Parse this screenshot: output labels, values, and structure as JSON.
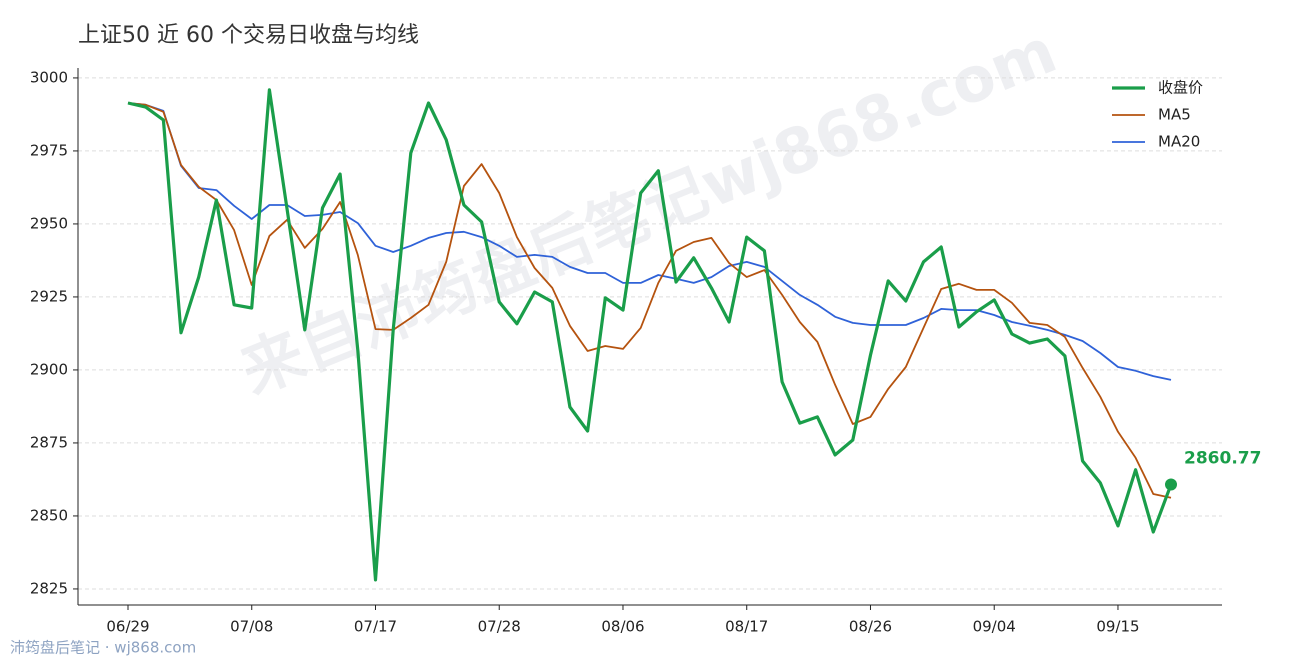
{
  "chart_data": {
    "type": "line",
    "title": "上证50 近 60 个交易日收盘与均线",
    "categories": [
      "06/29",
      null,
      null,
      null,
      null,
      null,
      null,
      "07/08",
      null,
      null,
      null,
      null,
      null,
      null,
      "07/17",
      null,
      null,
      null,
      null,
      null,
      null,
      "07/28",
      null,
      null,
      null,
      null,
      null,
      null,
      "08/06",
      null,
      null,
      null,
      null,
      null,
      null,
      "08/17",
      null,
      null,
      null,
      null,
      null,
      null,
      "08/26",
      null,
      null,
      null,
      null,
      null,
      null,
      "09/04",
      null,
      null,
      null,
      null,
      null,
      null,
      "09/15",
      null,
      null,
      null
    ],
    "series": [
      {
        "name": "收盘价",
        "color": "#1a9e4a",
        "end_label": true,
        "values": [
          2991.4,
          2990.0,
          2985.6,
          2912.7,
          2931.8,
          2958.2,
          2922.3,
          2921.2,
          2995.9,
          2955.0,
          2913.7,
          2955.5,
          2967.1,
          2906.8,
          2828.1,
          2913.7,
          2974.3,
          2991.4,
          2978.8,
          2956.5,
          2950.7,
          2923.3,
          2915.8,
          2926.7,
          2923.3,
          2887.3,
          2879.1,
          2924.7,
          2920.5,
          2960.6,
          2968.2,
          2930.1,
          2938.4,
          2928.1,
          2916.4,
          2945.5,
          2940.8,
          2895.9,
          2881.8,
          2883.9,
          2870.9,
          2876.0,
          2905.1,
          2930.5,
          2923.6,
          2937.0,
          2942.1,
          2914.7,
          2919.9,
          2924.0,
          2912.3,
          2909.2,
          2910.6,
          2904.8,
          2868.8,
          2861.3,
          2846.6,
          2865.8,
          2844.5,
          2860.77
        ]
      },
      {
        "name": "MA5",
        "color": "#b5530f",
        "values": [
          2991.4,
          2990.8,
          2988.4,
          2970.2,
          2962.7,
          2958.2,
          2947.9,
          2929.1,
          2945.9,
          2951.4,
          2941.8,
          2948.3,
          2957.5,
          2939.4,
          2914.0,
          2913.7,
          2917.8,
          2922.3,
          2937.0,
          2963.0,
          2970.5,
          2960.6,
          2945.5,
          2934.9,
          2928.1,
          2915.1,
          2906.5,
          2908.2,
          2907.2,
          2914.4,
          2929.8,
          2940.8,
          2943.8,
          2945.2,
          2936.6,
          2931.8,
          2934.2,
          2925.7,
          2916.4,
          2909.6,
          2894.9,
          2881.5,
          2883.9,
          2893.5,
          2901.0,
          2914.4,
          2927.7,
          2929.5,
          2927.4,
          2927.4,
          2923.0,
          2916.1,
          2915.4,
          2911.3,
          2900.7,
          2890.8,
          2878.8,
          2869.9,
          2857.5,
          2856.2
        ]
      },
      {
        "name": "MA20",
        "color": "#2f62d8",
        "values": [
          2991.4,
          2990.8,
          2988.7,
          2969.9,
          2962.3,
          2961.6,
          2956.2,
          2951.7,
          2956.5,
          2956.5,
          2952.7,
          2953.1,
          2954.1,
          2950.3,
          2942.5,
          2940.4,
          2942.5,
          2945.2,
          2946.9,
          2947.3,
          2945.5,
          2942.5,
          2938.7,
          2939.4,
          2938.7,
          2935.3,
          2933.2,
          2933.2,
          2929.8,
          2929.8,
          2932.5,
          2931.2,
          2929.8,
          2931.8,
          2935.6,
          2937.0,
          2935.3,
          2930.5,
          2925.7,
          2922.3,
          2918.2,
          2916.1,
          2915.4,
          2915.4,
          2915.4,
          2917.8,
          2920.9,
          2920.5,
          2920.5,
          2918.8,
          2916.4,
          2915.1,
          2913.7,
          2912.0,
          2909.9,
          2905.8,
          2901.0,
          2899.7,
          2897.9,
          2896.6
        ]
      }
    ],
    "ylim": [
      2819.5,
      3003.4
    ],
    "yticks": [
      2825,
      2850,
      2875,
      2900,
      2925,
      2950,
      2975,
      3000
    ],
    "grid": true,
    "legend": "upper right",
    "watermark": "来自沛筠盘后笔记wj868.com",
    "footer": "沛筠盘后笔记 · wj868.com"
  }
}
